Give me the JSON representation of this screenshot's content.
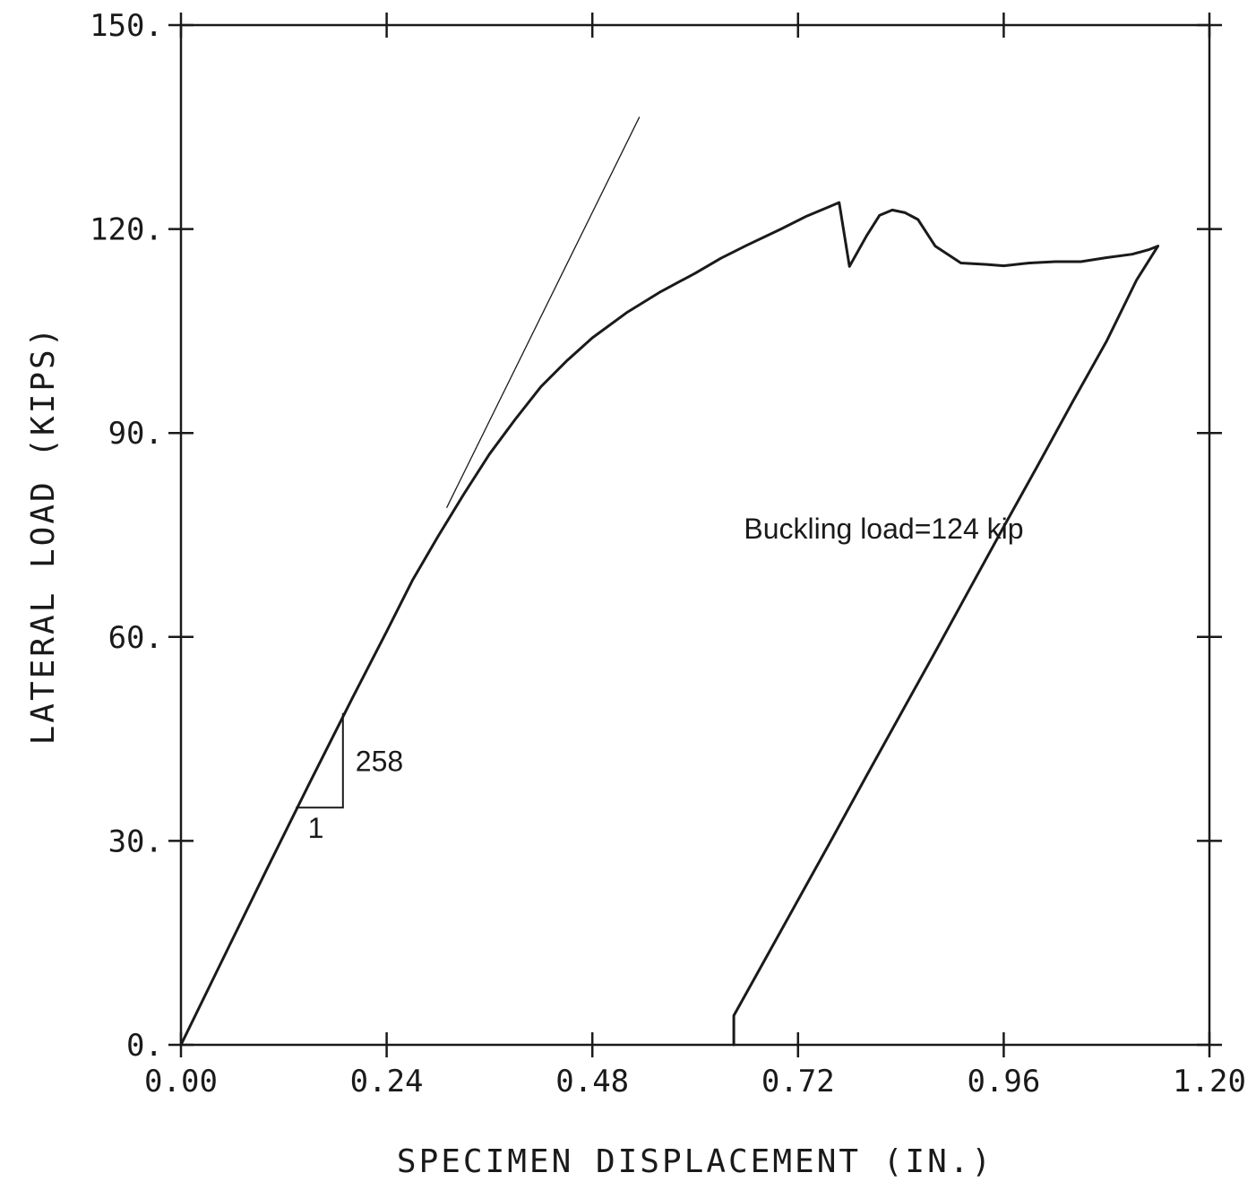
{
  "chart_data": {
    "type": "line",
    "xlabel": "SPECIMEN DISPLACEMENT (IN.)",
    "ylabel": "LATERAL LOAD (KIPS)",
    "xlim": [
      0,
      1.2
    ],
    "ylim": [
      0,
      150
    ],
    "x_ticks": [
      "0.00",
      "0.24",
      "0.48",
      "0.72",
      "0.96",
      "1.20"
    ],
    "y_ticks": [
      "0.",
      "30.",
      "60.",
      "90.",
      "120.",
      "150."
    ],
    "grid": false,
    "series": [
      {
        "points": [
          [
            0.0,
            0
          ],
          [
            0.05,
            12.9
          ],
          [
            0.1,
            25.8
          ],
          [
            0.15,
            38.5
          ],
          [
            0.2,
            51.0
          ],
          [
            0.24,
            60.8
          ],
          [
            0.27,
            68.3
          ],
          [
            0.3,
            74.8
          ],
          [
            0.33,
            81.0
          ],
          [
            0.36,
            86.9
          ],
          [
            0.39,
            92.0
          ],
          [
            0.42,
            96.8
          ],
          [
            0.45,
            100.6
          ],
          [
            0.48,
            104.0
          ],
          [
            0.52,
            107.7
          ],
          [
            0.56,
            110.8
          ],
          [
            0.6,
            113.5
          ],
          [
            0.63,
            115.7
          ],
          [
            0.66,
            117.6
          ],
          [
            0.7,
            120.0
          ],
          [
            0.73,
            121.9
          ],
          [
            0.755,
            123.2
          ],
          [
            0.768,
            123.9
          ],
          [
            0.78,
            114.5
          ],
          [
            0.8,
            119.0
          ],
          [
            0.815,
            122.0
          ],
          [
            0.83,
            122.8
          ],
          [
            0.845,
            122.4
          ],
          [
            0.86,
            121.4
          ],
          [
            0.88,
            117.5
          ],
          [
            0.91,
            115.0
          ],
          [
            0.94,
            114.8
          ],
          [
            0.96,
            114.6
          ],
          [
            0.99,
            115.0
          ],
          [
            1.02,
            115.2
          ],
          [
            1.05,
            115.2
          ],
          [
            1.08,
            115.8
          ],
          [
            1.11,
            116.3
          ],
          [
            1.13,
            117.0
          ],
          [
            1.14,
            117.5
          ],
          [
            1.115,
            112.5
          ],
          [
            1.08,
            103.5
          ],
          [
            1.04,
            94.5
          ],
          [
            1.0,
            85.3
          ],
          [
            0.96,
            76.2
          ],
          [
            0.92,
            67.0
          ],
          [
            0.88,
            57.8
          ],
          [
            0.84,
            48.7
          ],
          [
            0.8,
            39.6
          ],
          [
            0.76,
            30.4
          ],
          [
            0.72,
            21.3
          ],
          [
            0.68,
            12.2
          ],
          [
            0.645,
            4.3
          ],
          [
            0.645,
            0
          ]
        ]
      }
    ],
    "reference_line": {
      "points": [
        [
          0.31,
          79.0
        ],
        [
          0.535,
          136.5
        ]
      ]
    },
    "slope_triangle": {
      "x1": 0.134,
      "x2": 0.189,
      "y_low": 34.9,
      "y_high": 48.8,
      "run_label": "1",
      "rise_label": "258"
    },
    "annotations": [
      {
        "text": "Buckling load=124 kip",
        "x": 0.82,
        "y": 74.5
      }
    ]
  }
}
